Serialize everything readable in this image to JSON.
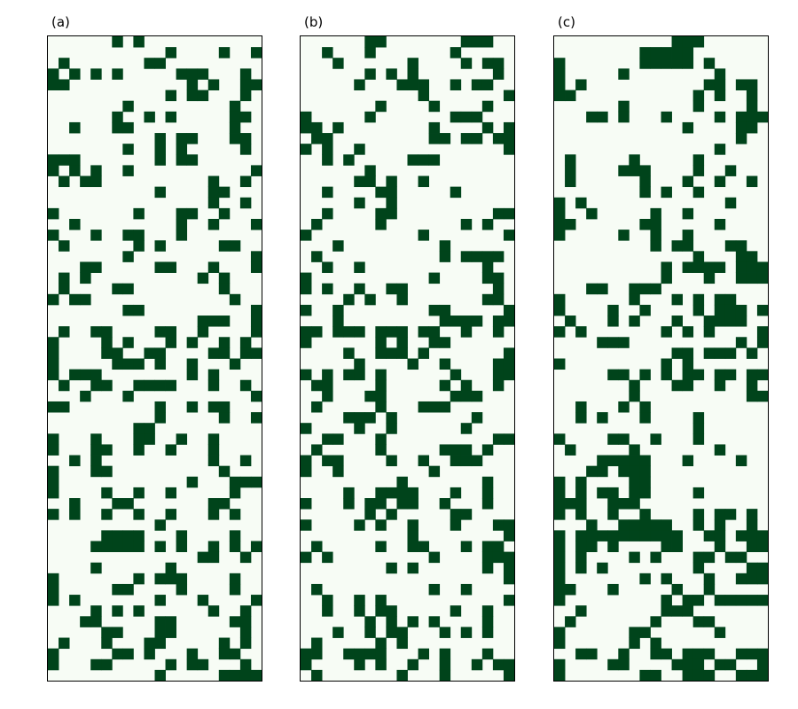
{
  "chart_data": [
    {
      "type": "heatmap",
      "label": "(a)",
      "cols": 20,
      "rows": 60,
      "colors": {
        "off": "#f7fcf5",
        "on": "#00441b",
        "frame": "#000000"
      },
      "grid": false,
      "cells": [
        "......#.#...........",
        "...........#....#..#",
        ".#.......##.........",
        "#.#.#.#.....###...#.",
        "##...........#.#..##",
        "...........#.##...#.",
        ".......#.........#..",
        "......#..#.#.....##.",
        "..#...##.........#..",
        "..........#.##...##.",
        ".......#..#.#.....#.",
        "###.......#.##......",
        "#.#.#..#...........#",
        ".#.##..........#..#.",
        "..........#....##...",
        "...............#..#.",
        "#.......#...##..#...",
        "..#.........#..#...#",
        "#...#..##...#.......",
        ".#......#.#.....##..",
        ".......#...........#",
        "...##.....##...#...#",
        ".#.#..........#.#...",
        ".#....##........#...",
        "#.##.............#..",
        ".......##..........#",
        "..............###..#",
        ".#..##....##..#....#",
        "#....#.#...#.#..#.#.",
        "#....##..##....##.##",
        "#.....###.#..#...#..",
        "#.###........#.#....",
        ".#..##..####...#..#.",
        "...#...#...........#",
        "##........#..#.##...",
        "..........#.....#..#",
        "........##..........",
        "#...#...##..#..#....",
        "#...##..#..#...#....",
        "..#.#..........#..#.",
        "#...##..........#...",
        "#............#...###",
        "#....#..#..#.....#..",
        "..#...##.......##...",
        "#.#..#..#..#...#.#..",
        "..........#.........",
        ".....####...#....#..",
        "....#####.#.#..#.#.#",
        "..............##..#.",
        "....#......#........",
        "#.......#.###....#..",
        "#.....##....#....#..",
        "#.#.......#...#....#",
        "....#.#.#......#..#.",
        "...##.....##.....##.",
        ".....##...##......#.",
        ".#...#...##.....#.#.",
        "#.....##.#...#..##..",
        "#...##.....#.##...#.",
        "..........#.....####"
      ]
    },
    {
      "type": "heatmap",
      "label": "(b)",
      "cols": 20,
      "rows": 60,
      "colors": {
        "off": "#f7fcf5",
        "on": "#00441b",
        "frame": "#000000"
      },
      "grid": false,
      "cells": [
        "......##.......###..",
        "..#...#.......#.....",
        "...#......#....#.##.",
        "......#.#.#.......#.",
        ".....#...###..#.##..",
        "...........#.......#",
        ".......#....#....#..",
        "#.....#.......###...",
        "##.#........#....#.#",
        ".##.........##.##.##",
        "#.#..#.............#",
        "..#.#.....###.......",
        "......#.............",
        ".....##.#..#........",
        "..#....##.....#.....",
        ".....#..#...........",
        "..#....##.........##",
        ".#.....#.......#.#..",
        "#..........#.......#",
        "...#.........#......",
        ".#...........#.####.",
        "..#..#...........#..",
        "#...........#....##.",
        "#.#..#..##........#.",
        "....#.#..#.......##.",
        "#..#........##.....#",
        "...#.........####.##",
        "##.###.###.##..#..#.",
        "#......#.#..##......",
        "....#..###.#.......#",
        ".....#....#..#....##",
        "#.#.##.#......#...##",
        ".##....#.....#.#..#.",
        "..#...##......###...",
        ".#.....#...###......",
        "....###.#.......#...",
        "#....#..#......#....",
        "..##...#..........##",
        ".#.....#.....###.#..",
        "#.##....#..#..###...",
        "#..#........#.......",
        ".........#.......#..",
        "....#..####...#..#..",
        "#...#.##.##..#...#..",
        "......#.#.....##....",
        "#....#.#..#...#...##",
        "..........#........#",
        ".#.....#..##...#.##.",
        "#.#.........#....###",
        "........#.#......#.#",
        "...................#",
        ".#..........#..#....",
        "..#..#.#...........#",
        "..#..#.##.....#..#..",
        "......#.#.#.#....#..",
        "...#..#.##...#.#.#..",
        ".#.....#.#..........",
        "##..####...#.#...#..",
        "#....#.#..#..#..#.##",
        ".#.......#...#.....#"
      ]
    },
    {
      "type": "heatmap",
      "label": "(c)",
      "cols": 20,
      "rows": 60,
      "colors": {
        "off": "#f7fcf5",
        "on": "#00441b",
        "frame": "#000000"
      },
      "grid": false,
      "cells": [
        "...........###......",
        "........#####.......",
        "#.......#####.#.....",
        "#.....#........#....",
        "#.#...........##.##.",
        "##...........#.#..#.",
        "......#......#....#.",
        "...##.#...#....#.###",
        "............#....##.",
        ".................#..",
        "...............#....",
        ".#.....#.....#......",
        ".#....###....#..#...",
        ".#......#...#..#..#.",
        "........#.#..#......",
        "#.#.............#...",
        "#..#.....#..#.......",
        "##......##.....#....",
        "#.....#..#..#.......",
        ".........#.##...##..",
        ".............#...##.",
        "..........#.####.###",
        "..........#...#..###",
        "...##..###..........",
        "#......#...#.#.##...",
        "#....#..#....#.###.#",
        ".#...#.#...#..####..",
        "#.#.......#.#.#....#",
        "....###..........#.#",
        "...........##.###.#.",
        "#.........#.#.......",
        ".....##.#.#.##.##.##",
        ".......#...##..#..#.",
        ".......#..........##",
        "..#...#.#...........",
        "..#.#...#....#......",
        ".............#......",
        "#....##..#...#......",
        ".#.....#.......#....",
        "....#####...#....#..",
        "...##.###...........",
        "#.#....##...........",
        "#.#.##.##....#......",
        "###..###............",
        "#.#..#..#....#.##.#.",
        "...#..#####..#.#..#.",
        "#.##########..##.###",
        "#.##.#....##...#..##",
        "#.#....#.#...##.##..",
        "#.#.#........#....##",
        "#.......#.#...#..###",
        "##...#.....#..#.....",
        "#.........#.##.#####",
        "..#.......###.......",
        ".#.......#...##.....",
        "#......##......#....",
        "#......#.#..........",
        "..##..#..##.###..###",
        "#....##....###.##..#",
        "#.......##..###..###"
      ]
    }
  ]
}
